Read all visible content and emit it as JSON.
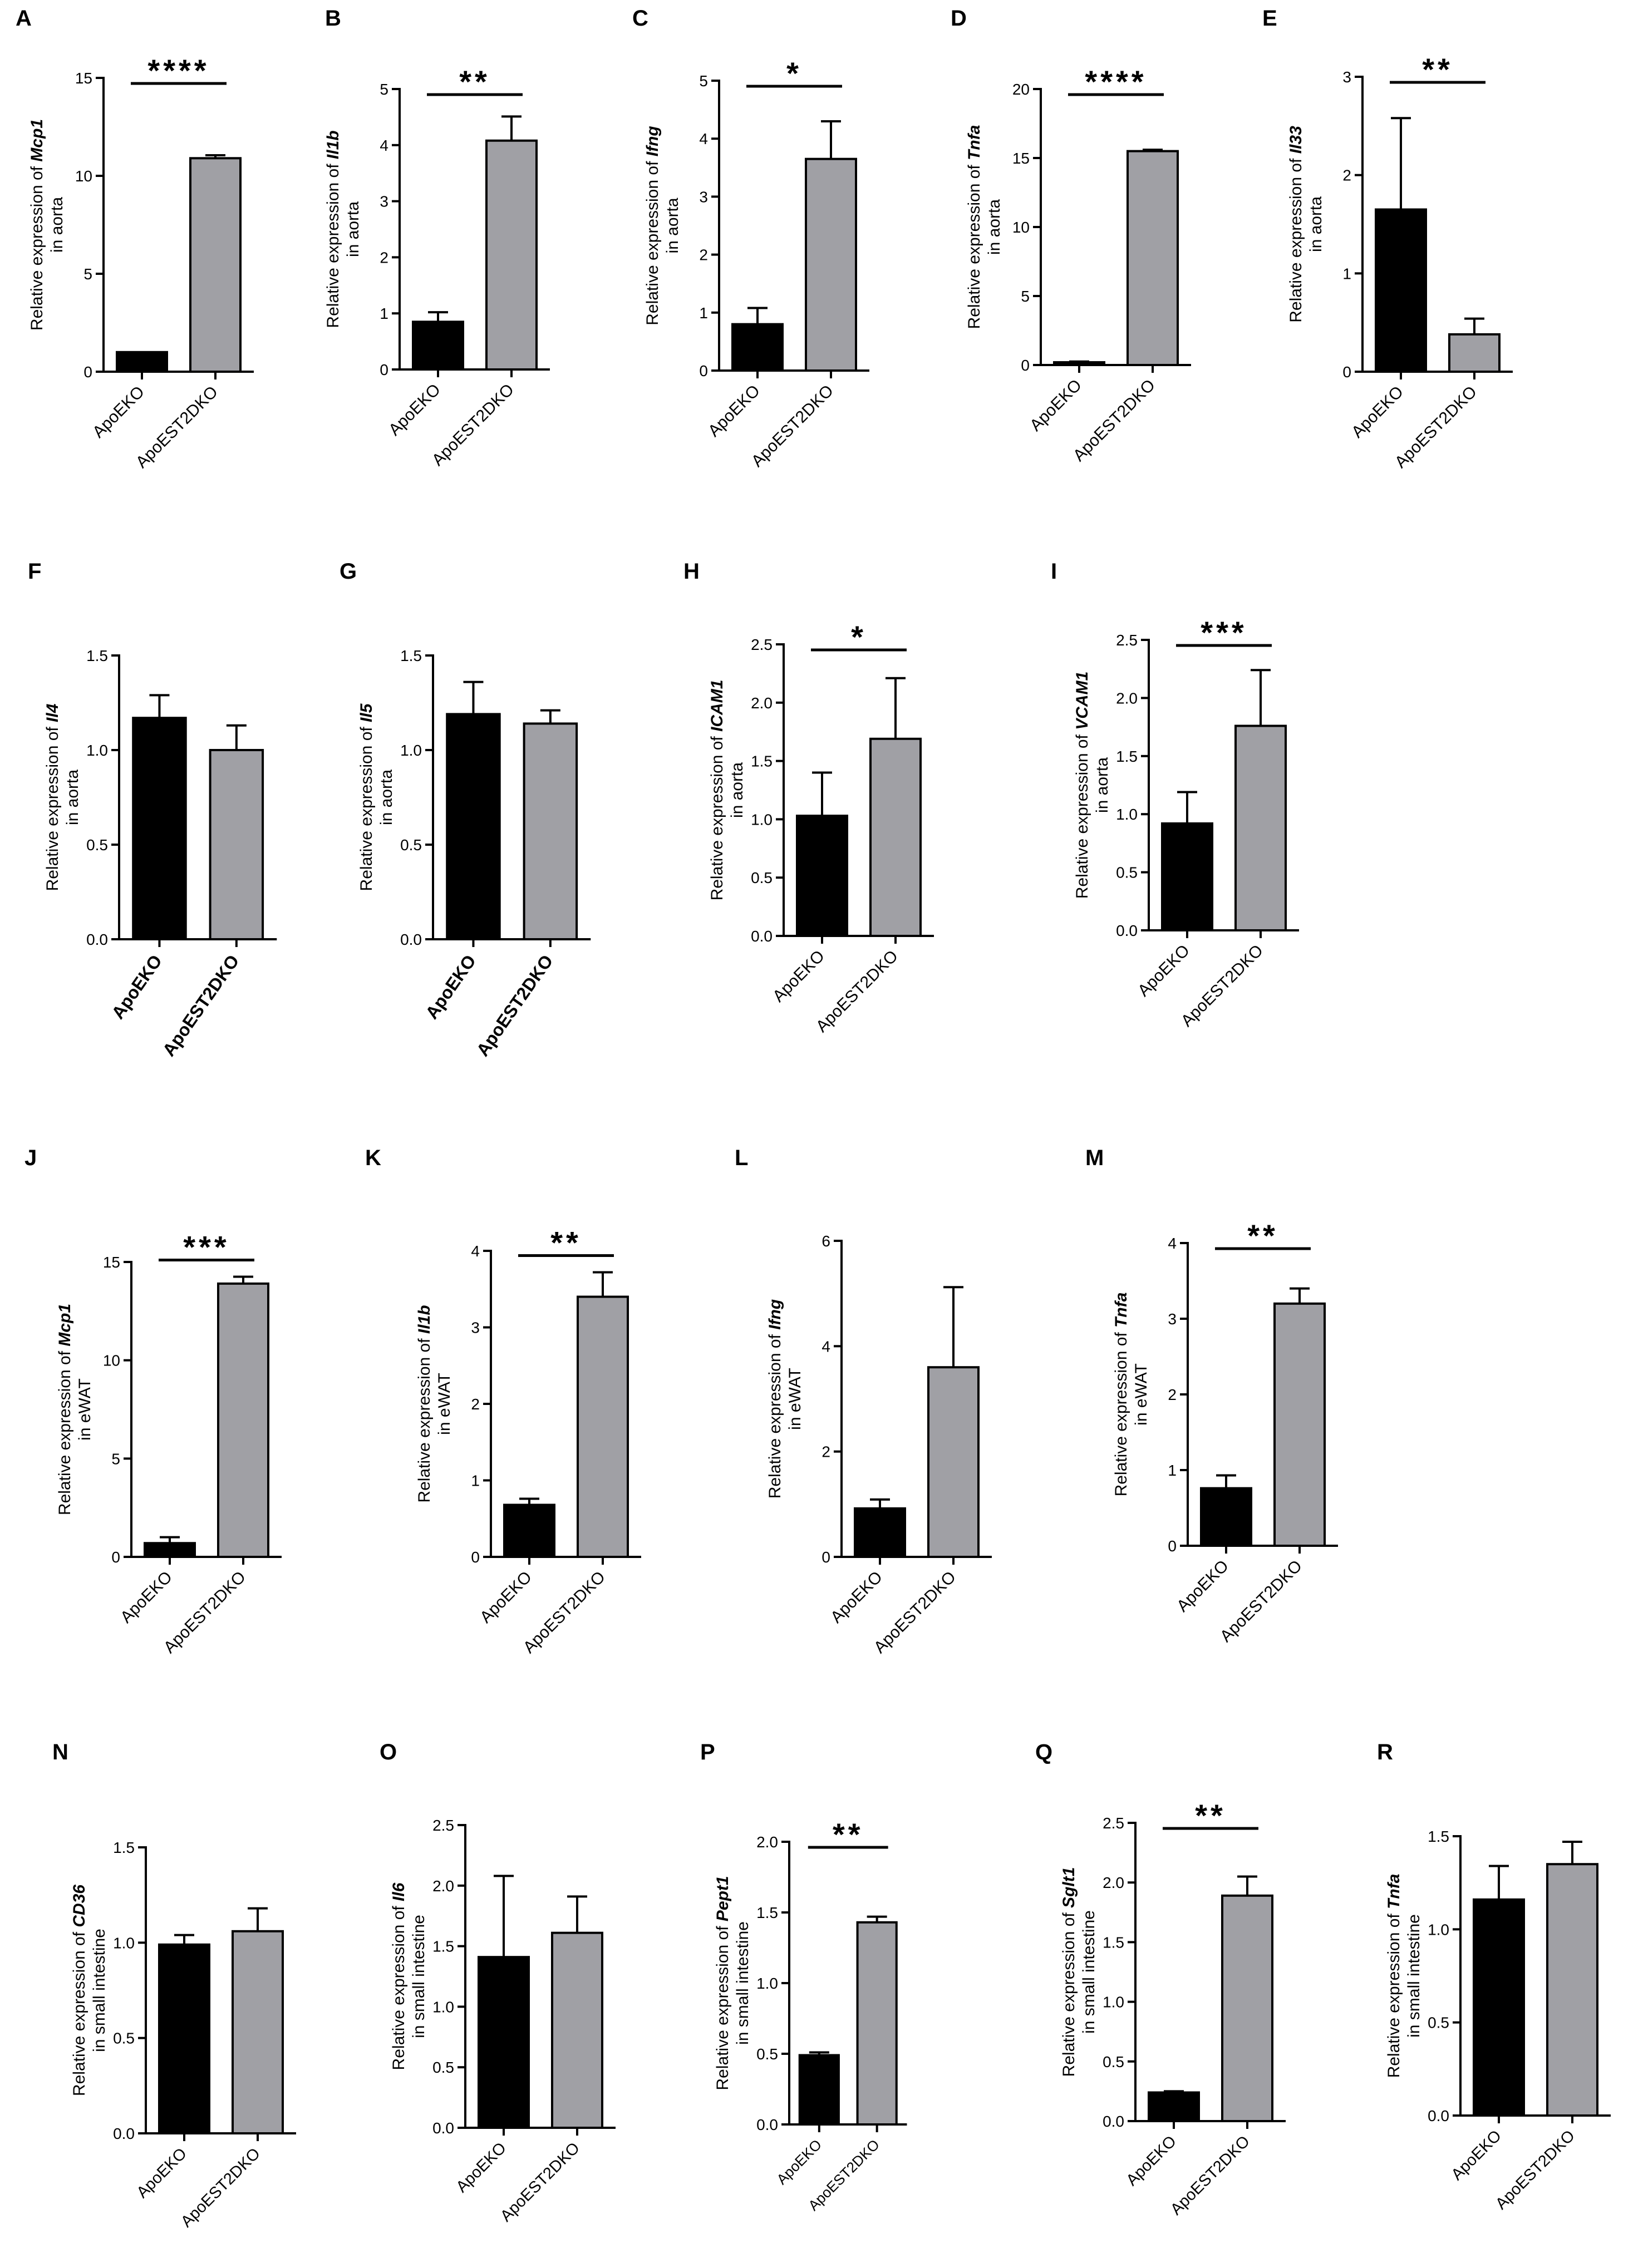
{
  "colors": {
    "group1": "#000000",
    "group2": "#a0a0a5",
    "axis": "#000000"
  },
  "chart_data": [
    {
      "panel": "A",
      "type": "bar",
      "categories": [
        "ApoEKO",
        "ApoEST2DKO"
      ],
      "values": [
        1.0,
        10.9
      ],
      "errors": [
        0.0,
        0.15
      ],
      "ylim": [
        0,
        15
      ],
      "yticks": [
        "0",
        "5",
        "10",
        "15"
      ],
      "ylabel_prefix": "Relative expression of ",
      "gene": "Mcp1",
      "ylabel_line2": "in aorta",
      "significance": "****"
    },
    {
      "panel": "B",
      "type": "bar",
      "categories": [
        "ApoEKO",
        "ApoEST2DKO"
      ],
      "values": [
        0.85,
        4.08
      ],
      "errors": [
        0.17,
        0.43
      ],
      "ylim": [
        0,
        5
      ],
      "yticks": [
        "0",
        "1",
        "2",
        "3",
        "4",
        "5"
      ],
      "ylabel_prefix": "Relative expression of ",
      "gene": "Il1b",
      "ylabel_line2": "in aorta",
      "significance": "**"
    },
    {
      "panel": "C",
      "type": "bar",
      "categories": [
        "ApoEKO",
        "ApoEST2DKO"
      ],
      "values": [
        0.8,
        3.65
      ],
      "errors": [
        0.28,
        0.65
      ],
      "ylim": [
        0,
        5
      ],
      "yticks": [
        "0",
        "1",
        "2",
        "3",
        "4",
        "5"
      ],
      "ylabel_prefix": "Relative expression of ",
      "gene": "Ifng",
      "ylabel_line2": "in aorta",
      "significance": "*"
    },
    {
      "panel": "D",
      "type": "bar",
      "categories": [
        "ApoEKO",
        "ApoEST2DKO"
      ],
      "values": [
        0.2,
        15.5
      ],
      "errors": [
        0.05,
        0.1
      ],
      "ylim": [
        0,
        20
      ],
      "yticks": [
        "0",
        "5",
        "10",
        "15",
        "20"
      ],
      "ylabel_prefix": "Relative expression of ",
      "gene": "Tnfa",
      "ylabel_line2": "in aorta",
      "significance": "****"
    },
    {
      "panel": "E",
      "type": "bar",
      "categories": [
        "ApoEKO",
        "ApoEST2DKO"
      ],
      "values": [
        1.65,
        0.38
      ],
      "errors": [
        0.93,
        0.16
      ],
      "ylim": [
        0,
        3
      ],
      "yticks": [
        "0",
        "1",
        "2",
        "3"
      ],
      "ylabel_prefix": "Relative expression of ",
      "gene": "Il33",
      "ylabel_line2": "in aorta",
      "significance": "**"
    },
    {
      "panel": "F",
      "type": "bar",
      "categories": [
        "ApoEKO",
        "ApoEST2DKO"
      ],
      "values": [
        1.17,
        1.0
      ],
      "errors": [
        0.12,
        0.13
      ],
      "ylim": [
        0,
        1.5
      ],
      "yticks": [
        "0.0",
        "0.5",
        "1.0",
        "1.5"
      ],
      "ylabel_prefix": "Relative expression of ",
      "gene": "Il4",
      "ylabel_line2": "in aorta",
      "significance": ""
    },
    {
      "panel": "G",
      "type": "bar",
      "categories": [
        "ApoEKO",
        "ApoEST2DKO"
      ],
      "values": [
        1.19,
        1.14
      ],
      "errors": [
        0.17,
        0.07
      ],
      "ylim": [
        0,
        1.5
      ],
      "yticks": [
        "0.0",
        "0.5",
        "1.0",
        "1.5"
      ],
      "ylabel_prefix": "Relative expression of ",
      "gene": "Il5",
      "ylabel_line2": "in aorta",
      "significance": ""
    },
    {
      "panel": "H",
      "type": "bar",
      "categories": [
        "ApoEKO",
        "ApoEST2DKO"
      ],
      "values": [
        1.03,
        1.69
      ],
      "errors": [
        0.37,
        0.52
      ],
      "ylim": [
        0,
        2.5
      ],
      "yticks": [
        "0.0",
        "0.5",
        "1.0",
        "1.5",
        "2.0",
        "2.5"
      ],
      "ylabel_prefix": "Relative expression of ",
      "gene": "ICAM1",
      "ylabel_line2": "in aorta",
      "significance": "*"
    },
    {
      "panel": "I",
      "type": "bar",
      "categories": [
        "ApoEKO",
        "ApoEST2DKO"
      ],
      "values": [
        0.92,
        1.76
      ],
      "errors": [
        0.27,
        0.48
      ],
      "ylim": [
        0,
        2.5
      ],
      "yticks": [
        "0.0",
        "0.5",
        "1.0",
        "1.5",
        "2.0",
        "2.5"
      ],
      "ylabel_prefix": "Relative expression of ",
      "gene": "VCAM1",
      "ylabel_line2": "in aorta",
      "significance": "***"
    },
    {
      "panel": "J",
      "type": "bar",
      "categories": [
        "ApoEKO",
        "ApoEST2DKO"
      ],
      "values": [
        0.7,
        13.9
      ],
      "errors": [
        0.3,
        0.35
      ],
      "ylim": [
        0,
        15
      ],
      "yticks": [
        "0",
        "5",
        "10",
        "15"
      ],
      "ylabel_prefix": "Relative expression of ",
      "gene": "Mcp1",
      "ylabel_line2": "in eWAT",
      "significance": "***"
    },
    {
      "panel": "K",
      "type": "bar",
      "categories": [
        "ApoEKO",
        "ApoEST2DKO"
      ],
      "values": [
        0.68,
        3.4
      ],
      "errors": [
        0.08,
        0.32
      ],
      "ylim": [
        0,
        4
      ],
      "yticks": [
        "0",
        "1",
        "2",
        "3",
        "4"
      ],
      "ylabel_prefix": "Relative expression of ",
      "gene": "Il1b",
      "ylabel_line2": "in eWAT",
      "significance": "**"
    },
    {
      "panel": "L",
      "type": "bar",
      "categories": [
        "ApoEKO",
        "ApoEST2DKO"
      ],
      "values": [
        0.92,
        3.6
      ],
      "errors": [
        0.17,
        1.52
      ],
      "ylim": [
        0,
        6
      ],
      "yticks": [
        "0",
        "2",
        "4",
        "6"
      ],
      "ylabel_prefix": "Relative expression of ",
      "gene": "Ifng",
      "ylabel_line2": "in eWAT",
      "significance": ""
    },
    {
      "panel": "M",
      "type": "bar",
      "categories": [
        "ApoEKO",
        "ApoEST2DKO"
      ],
      "values": [
        0.76,
        3.2
      ],
      "errors": [
        0.17,
        0.2
      ],
      "ylim": [
        0,
        4
      ],
      "yticks": [
        "0",
        "1",
        "2",
        "3",
        "4"
      ],
      "ylabel_prefix": "Relative expression of ",
      "gene": "Tnfa",
      "ylabel_line2": "in eWAT",
      "significance": "**"
    },
    {
      "panel": "N",
      "type": "bar",
      "categories": [
        "ApoEKO",
        "ApoEST2DKO"
      ],
      "values": [
        0.99,
        1.06
      ],
      "errors": [
        0.05,
        0.12
      ],
      "ylim": [
        0,
        1.5
      ],
      "yticks": [
        "0.0",
        "0.5",
        "1.0",
        "1.5"
      ],
      "ylabel_prefix": "Relative expression of ",
      "gene": "CD36",
      "ylabel_line2": "in small intestine",
      "significance": ""
    },
    {
      "panel": "O",
      "type": "bar",
      "categories": [
        "ApoEKO",
        "ApoEST2DKO"
      ],
      "values": [
        1.41,
        1.61
      ],
      "errors": [
        0.67,
        0.3
      ],
      "ylim": [
        0,
        2.5
      ],
      "yticks": [
        "0.0",
        "0.5",
        "1.0",
        "1.5",
        "2.0",
        "2.5"
      ],
      "ylabel_prefix": "Relative expression of ",
      "gene": "Il6",
      "ylabel_line2": "in small intestine",
      "significance": ""
    },
    {
      "panel": "P",
      "type": "bar",
      "categories": [
        "ApoEKO",
        "ApoEST2DKO"
      ],
      "values": [
        0.49,
        1.43
      ],
      "errors": [
        0.02,
        0.04
      ],
      "ylim": [
        0,
        2.0
      ],
      "yticks": [
        "0.0",
        "0.5",
        "1.0",
        "1.5",
        "2.0"
      ],
      "ylabel_prefix": "Relative expression of ",
      "gene": "Pept1",
      "ylabel_line2": "in small intestine",
      "significance": "**"
    },
    {
      "panel": "Q",
      "type": "bar",
      "categories": [
        "ApoEKO",
        "ApoEST2DKO"
      ],
      "values": [
        0.24,
        1.89
      ],
      "errors": [
        0.01,
        0.16
      ],
      "ylim": [
        0,
        2.5
      ],
      "yticks": [
        "0.0",
        "0.5",
        "1.0",
        "1.5",
        "2.0",
        "2.5"
      ],
      "ylabel_prefix": "Relative expression of ",
      "gene": "Sglt1",
      "ylabel_line2": "in small intestine",
      "significance": "**"
    },
    {
      "panel": "R",
      "type": "bar",
      "categories": [
        "ApoEKO",
        "ApoEST2DKO"
      ],
      "values": [
        1.16,
        1.35
      ],
      "errors": [
        0.18,
        0.12
      ],
      "ylim": [
        0,
        1.5
      ],
      "yticks": [
        "0.0",
        "0.5",
        "1.0",
        "1.5"
      ],
      "ylabel_prefix": "Relative expression of ",
      "gene": "Tnfa",
      "ylabel_line2": "in small intestine",
      "significance": ""
    }
  ]
}
